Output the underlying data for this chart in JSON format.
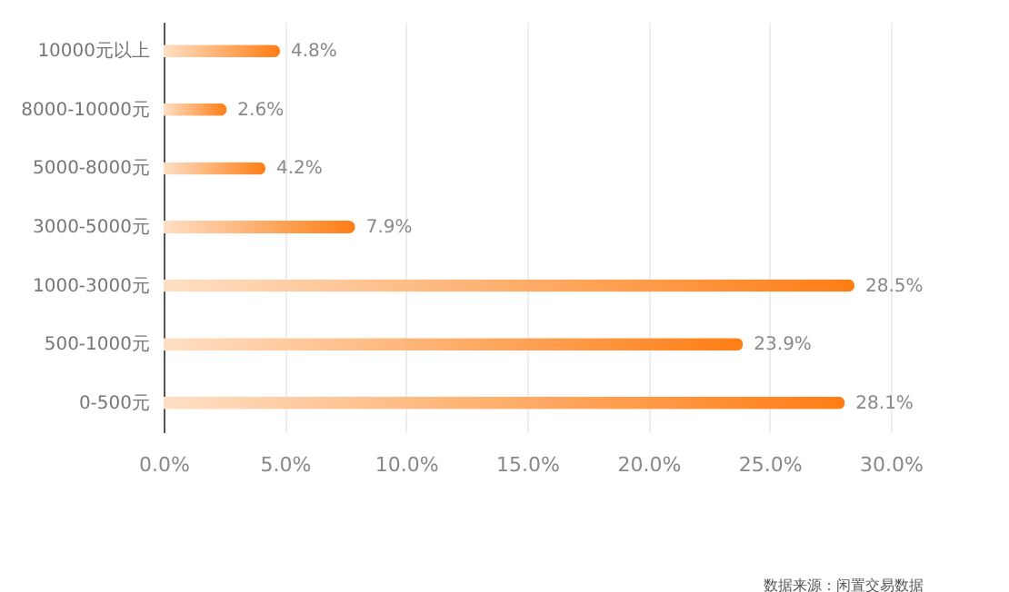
{
  "chart_data": {
    "type": "bar",
    "orientation": "horizontal",
    "categories": [
      "10000元以上",
      "8000-10000元",
      "5000-8000元",
      "3000-5000元",
      "1000-3000元",
      "500-1000元",
      "0-500元"
    ],
    "values": [
      4.8,
      2.6,
      4.2,
      7.9,
      28.5,
      23.9,
      28.1
    ],
    "value_labels": [
      "4.8%",
      "2.6%",
      "4.2%",
      "7.9%",
      "28.5%",
      "23.9%",
      "28.1%"
    ],
    "color": "#ff7d14",
    "xlim": [
      0,
      30
    ],
    "xticks": [
      {
        "value": 0,
        "label": "0.0%"
      },
      {
        "value": 5,
        "label": "5.0%"
      },
      {
        "value": 10,
        "label": "10.0%"
      },
      {
        "value": 15,
        "label": "15.0%"
      },
      {
        "value": 20,
        "label": "20.0%"
      },
      {
        "value": 25,
        "label": "25.0%"
      },
      {
        "value": 30,
        "label": "30.0%"
      }
    ],
    "grid": "x",
    "annotations": [
      "数据来源：闲置交易数据"
    ]
  }
}
